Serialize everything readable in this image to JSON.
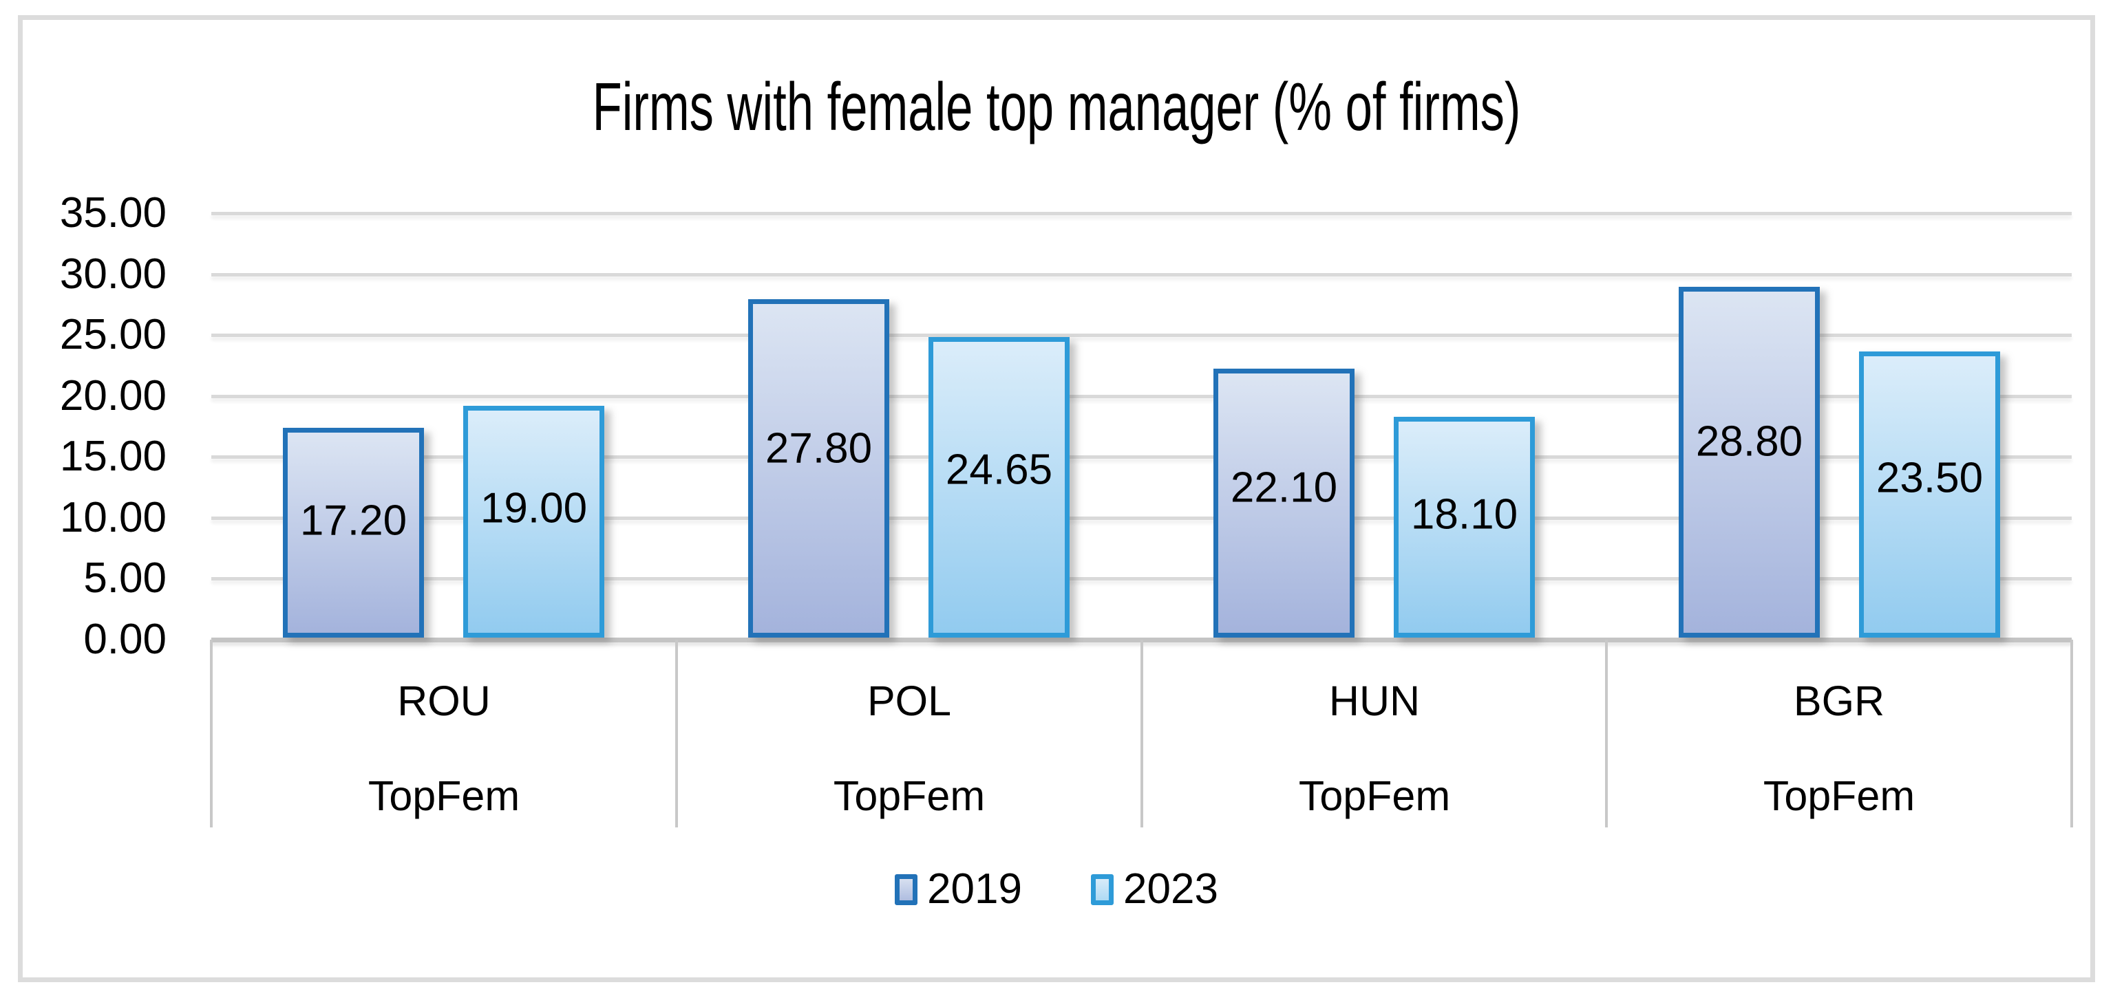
{
  "chart_data": {
    "type": "bar",
    "title": "Firms with female top manager (% of firms)",
    "categories": [
      "ROU",
      "POL",
      "HUN",
      "BGR"
    ],
    "group_label": "TopFem",
    "series": [
      {
        "name": "2019",
        "values": [
          17.2,
          27.8,
          22.1,
          28.8
        ],
        "labels": [
          "17.20",
          "27.80",
          "22.10",
          "28.80"
        ]
      },
      {
        "name": "2023",
        "values": [
          19.0,
          24.65,
          18.1,
          23.5
        ],
        "labels": [
          "19.00",
          "24.65",
          "18.10",
          "23.50"
        ]
      }
    ],
    "y_axis": {
      "min": 0,
      "max": 35,
      "step": 5,
      "tick_labels": [
        "35.00",
        "30.00",
        "25.00",
        "20.00",
        "15.00",
        "10.00",
        "5.00",
        "0.00"
      ]
    },
    "legend": {
      "position": "bottom",
      "entries": [
        "2019",
        "2023"
      ]
    },
    "grid": true,
    "colors": {
      "series_2019": {
        "border": "#2272B8",
        "fill_top": "#DCE5F3",
        "fill_bottom": "#A4B3DC"
      },
      "series_2023": {
        "border": "#2E9BD8",
        "fill_top": "#DBEDFA",
        "fill_bottom": "#92CBEF"
      },
      "gridline": "#D9D9D9",
      "axis_line": "#C4C4C4",
      "divider": "#C8C8C8",
      "text": "#000000",
      "frame_border": "#DCDCDC",
      "background": "#FFFFFF"
    }
  }
}
